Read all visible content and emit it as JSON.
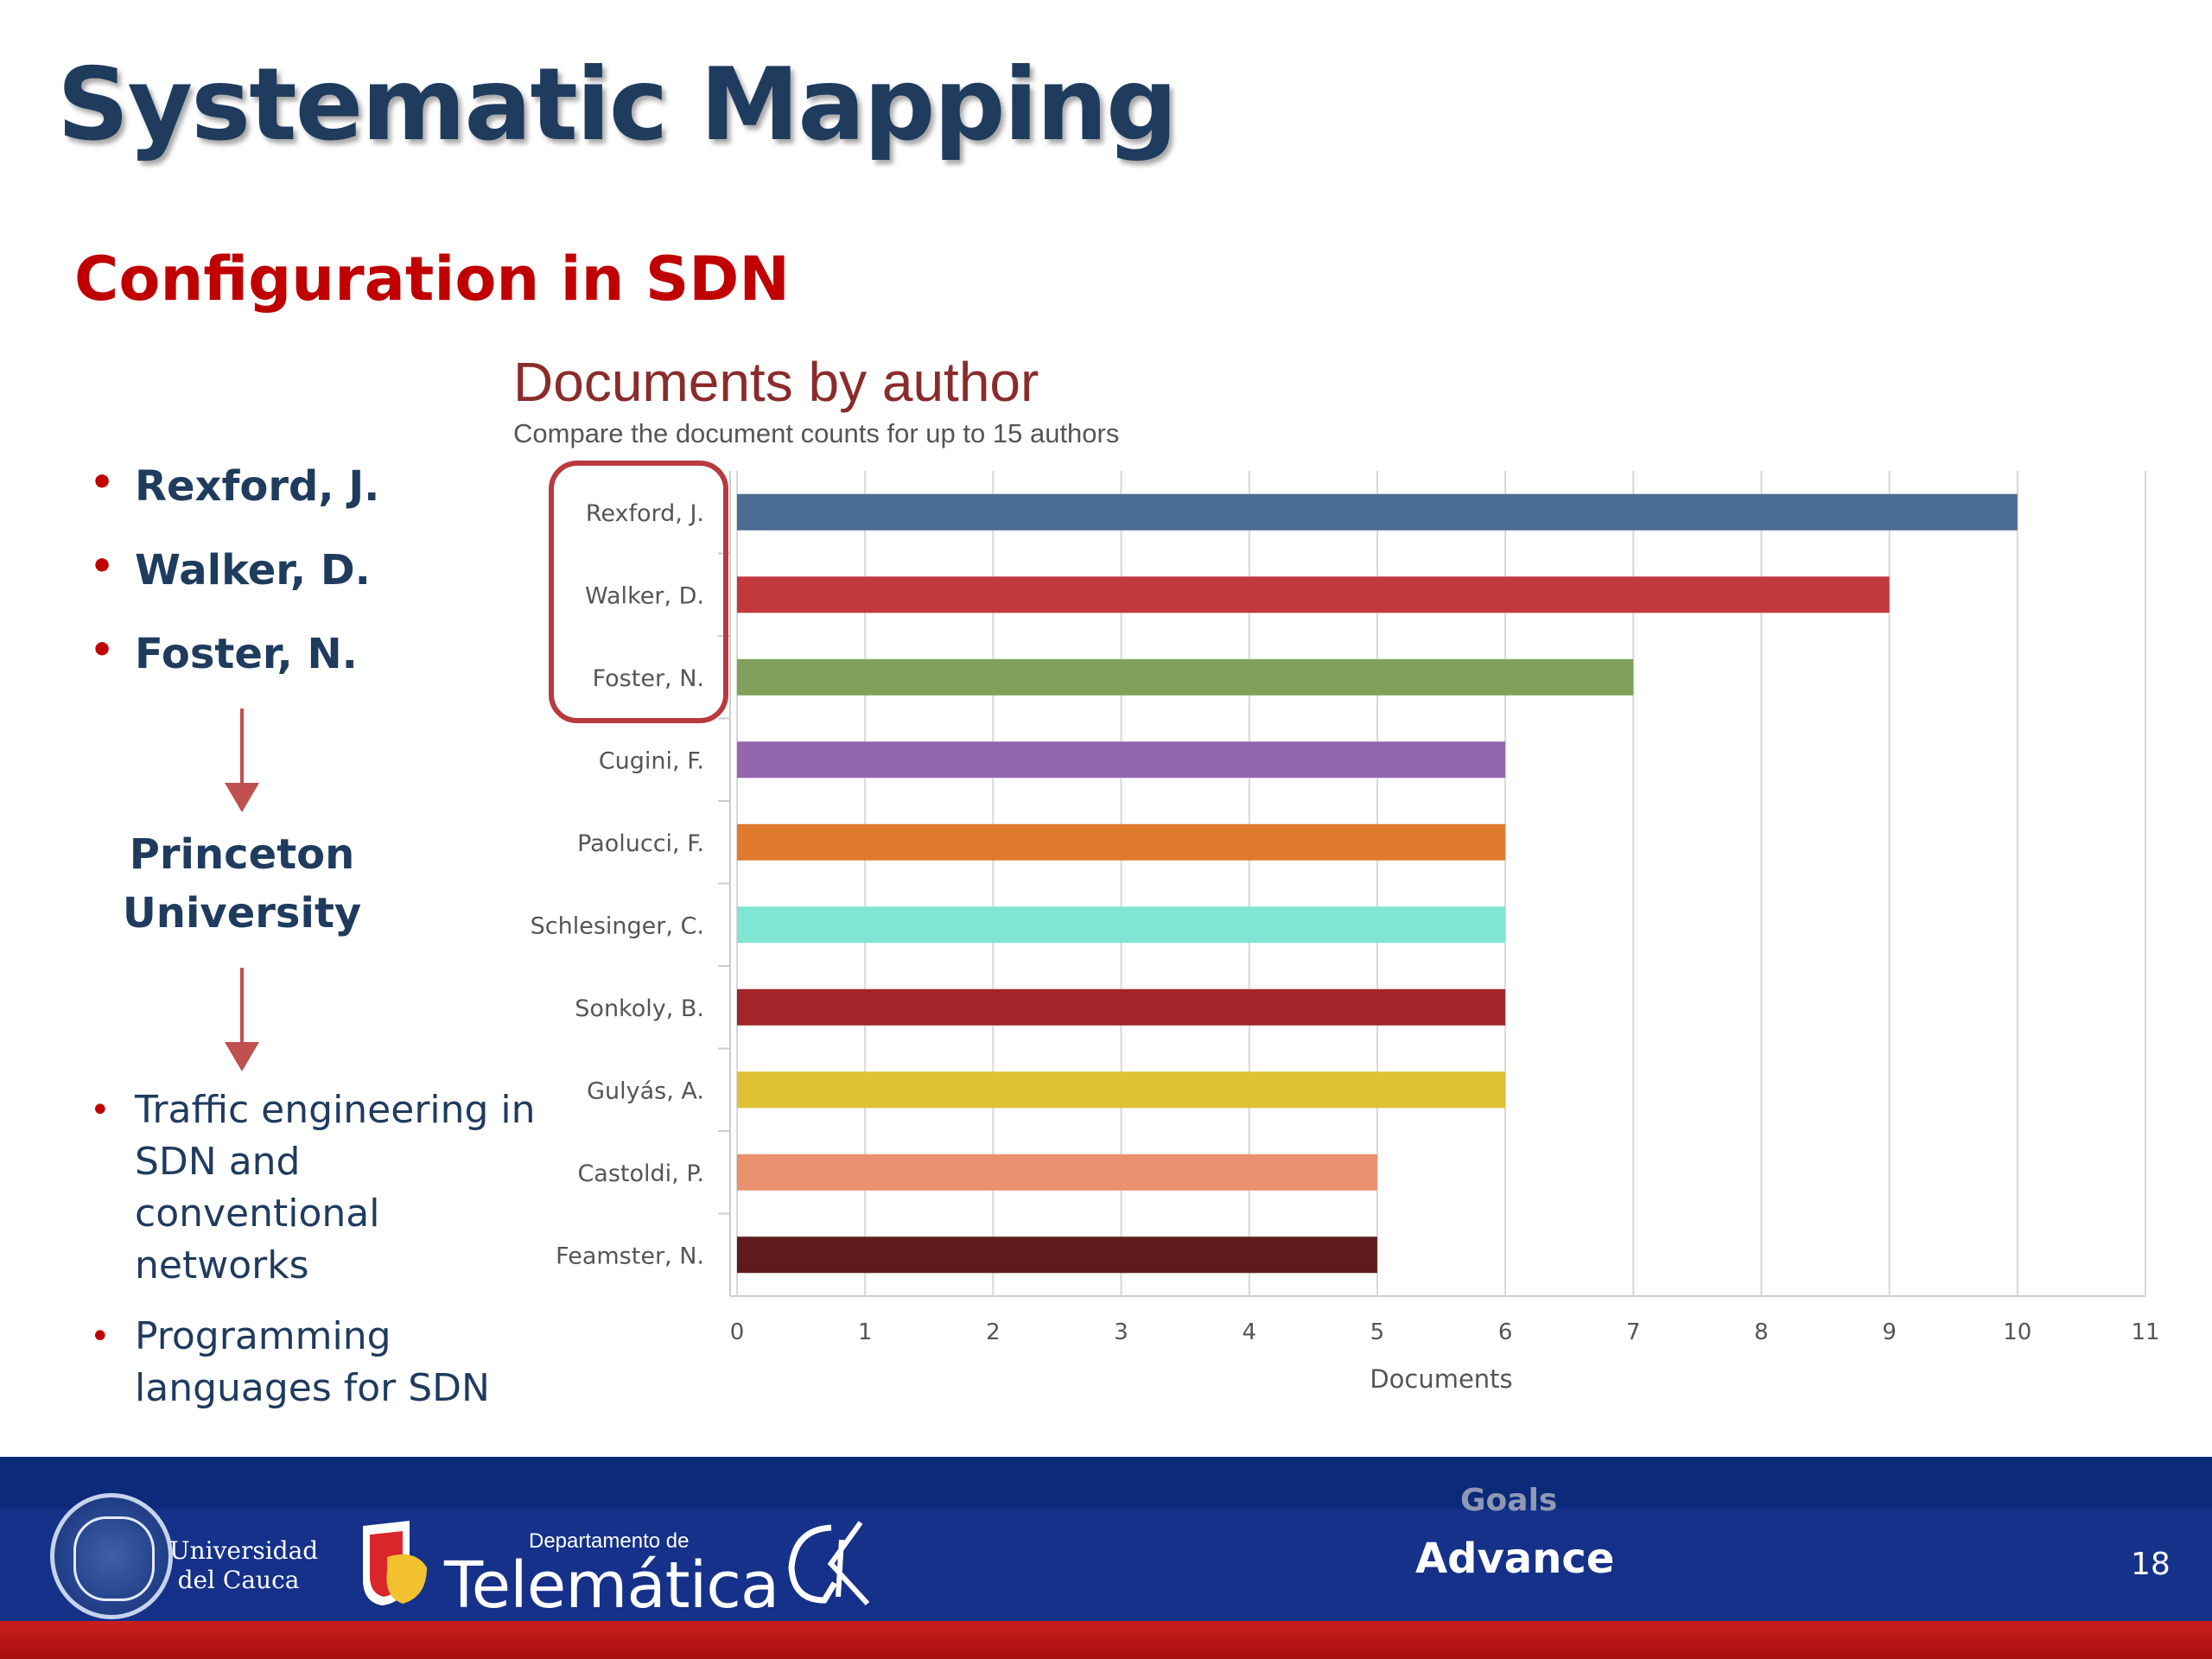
{
  "slide": {
    "title": "Systematic Mapping",
    "subtitle": "Configuration in SDN",
    "top_authors": [
      "Rexford, J.",
      "Walker, D.",
      "Foster, N."
    ],
    "institution_line1": "Princeton",
    "institution_line2": "University",
    "topics": [
      "Traffic engineering in SDN and conventional networks",
      "Programming languages for SDN"
    ],
    "arrow_color": "#c0504d",
    "accent_color": "#c00000",
    "highlight_color": "#b8393e"
  },
  "chart_data": {
    "type": "bar",
    "orientation": "horizontal",
    "title": "Documents by author",
    "subtitle": "Compare the document counts for up to 15 authors",
    "xlabel": "Documents",
    "ylabel": "",
    "xlim": [
      0,
      11
    ],
    "xticks": [
      0,
      1,
      2,
      3,
      4,
      5,
      6,
      7,
      8,
      9,
      10,
      11
    ],
    "grid": "vertical",
    "legend": "none",
    "highlighted_categories": [
      "Rexford, J.",
      "Walker, D.",
      "Foster, N."
    ],
    "categories": [
      "Rexford, J.",
      "Walker, D.",
      "Foster, N.",
      "Cugini, F.",
      "Paolucci, F.",
      "Schlesinger, C.",
      "Sonkoly, B.",
      "Gulyás, A.",
      "Castoldi, P.",
      "Feamster, N."
    ],
    "values": [
      10,
      9,
      7,
      6,
      6,
      6,
      6,
      6,
      5,
      5
    ],
    "colors": [
      "#4a6c93",
      "#c1393e",
      "#7fa15a",
      "#9466b0",
      "#e07a2e",
      "#80e5d3",
      "#a12529",
      "#dfc134",
      "#e9906e",
      "#5e1a1c"
    ]
  },
  "footer": {
    "university_line1": "Universidad",
    "university_line2": "del Cauca",
    "department_small": "Departamento de",
    "department_name": "Telemática",
    "section_label": "Goals",
    "current_section": "Advance",
    "page_number": "18",
    "bar_color": "#15318a",
    "stripe_color": "#c91d1d"
  }
}
